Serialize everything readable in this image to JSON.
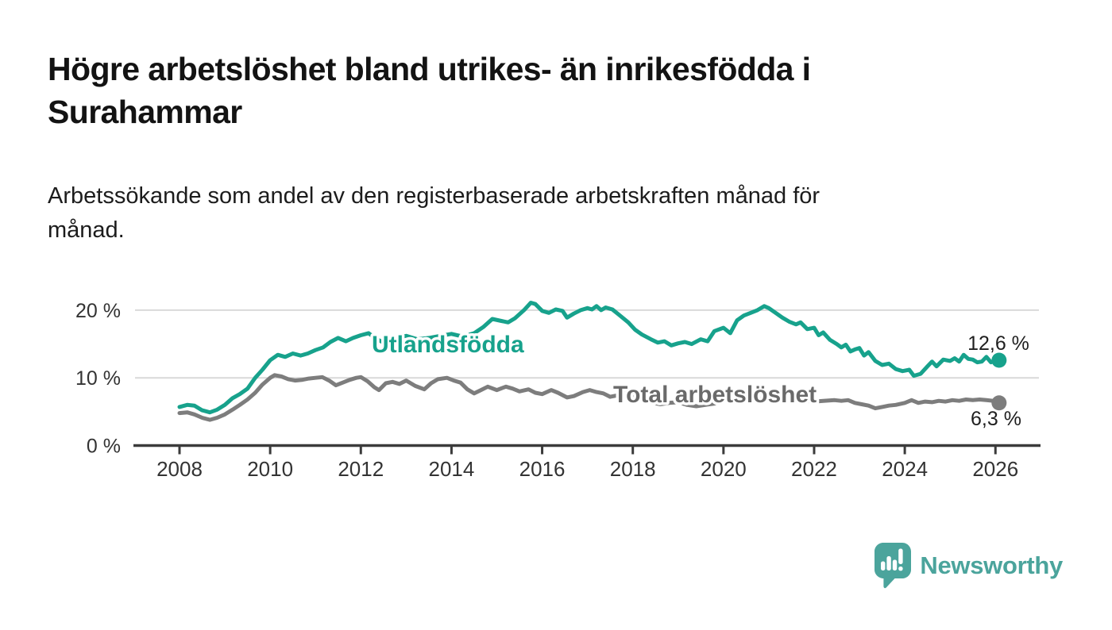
{
  "header": {
    "title_line1": "Högre arbetslöshet bland utrikes- än inrikesfödda i",
    "title_line2": "Surahammar",
    "subtitle_line1": "Arbetssökande som andel av den registerbaserade arbetskraften månad för",
    "subtitle_line2": "månad."
  },
  "footer": {
    "brand": "Newsworthy",
    "brand_color": "#4ba49c"
  },
  "chart_data": {
    "type": "line",
    "title": "Högre arbetslöshet bland utrikes- än inrikesfödda i Surahammar",
    "subtitle": "Arbetssökande som andel av den registerbaserade arbetskraften månad för månad.",
    "grid": "horizontal-only",
    "legend_position": "inline-labels-on-lines",
    "x_axis": {
      "range_years": [
        2007.0,
        2027.0
      ],
      "tick_years": [
        2008,
        2010,
        2012,
        2014,
        2016,
        2018,
        2020,
        2022,
        2024,
        2026
      ],
      "tick_labels": [
        "2008",
        "2010",
        "2012",
        "2014",
        "2016",
        "2018",
        "2020",
        "2022",
        "2024",
        "2026"
      ]
    },
    "y_axis": {
      "range_percent": [
        0,
        23.5
      ],
      "tick_values": [
        0,
        10,
        20
      ],
      "tick_labels": [
        "0 %",
        "10 %",
        "20 %"
      ]
    },
    "style": {
      "grid_color": "#d9d9d9",
      "axis_color": "#3b3b3b",
      "tick_text_color": "#333333",
      "value_label_color": "#1f1f1f"
    },
    "series": [
      {
        "name": "Utlandsfödda",
        "color": "#17a28c",
        "label_color": "#17a28c",
        "end_value": 12.6,
        "end_label": "12,6 %",
        "points": [
          [
            2008.0,
            5.7
          ],
          [
            2008.17,
            6.0
          ],
          [
            2008.33,
            5.9
          ],
          [
            2008.5,
            5.2
          ],
          [
            2008.67,
            4.9
          ],
          [
            2008.83,
            5.3
          ],
          [
            2009.0,
            6.0
          ],
          [
            2009.17,
            7.0
          ],
          [
            2009.33,
            7.6
          ],
          [
            2009.5,
            8.4
          ],
          [
            2009.67,
            10.0
          ],
          [
            2009.83,
            11.2
          ],
          [
            2010.0,
            12.6
          ],
          [
            2010.17,
            13.4
          ],
          [
            2010.33,
            13.1
          ],
          [
            2010.5,
            13.6
          ],
          [
            2010.67,
            13.3
          ],
          [
            2010.83,
            13.6
          ],
          [
            2011.0,
            14.1
          ],
          [
            2011.17,
            14.5
          ],
          [
            2011.33,
            15.3
          ],
          [
            2011.5,
            15.9
          ],
          [
            2011.67,
            15.4
          ],
          [
            2011.83,
            15.9
          ],
          [
            2012.0,
            16.3
          ],
          [
            2012.17,
            16.6
          ],
          [
            2012.33,
            15.8
          ],
          [
            2012.5,
            15.2
          ],
          [
            2012.67,
            15.6
          ],
          [
            2012.83,
            16.0
          ],
          [
            2013.0,
            16.2
          ],
          [
            2013.25,
            15.7
          ],
          [
            2013.5,
            15.9
          ],
          [
            2013.75,
            16.2
          ],
          [
            2014.0,
            16.5
          ],
          [
            2014.25,
            16.1
          ],
          [
            2014.5,
            16.6
          ],
          [
            2014.7,
            17.5
          ],
          [
            2014.9,
            18.7
          ],
          [
            2015.1,
            18.4
          ],
          [
            2015.25,
            18.2
          ],
          [
            2015.4,
            18.8
          ],
          [
            2015.6,
            20.0
          ],
          [
            2015.75,
            21.1
          ],
          [
            2015.85,
            20.9
          ],
          [
            2016.0,
            19.9
          ],
          [
            2016.15,
            19.6
          ],
          [
            2016.3,
            20.1
          ],
          [
            2016.45,
            19.9
          ],
          [
            2016.55,
            18.9
          ],
          [
            2016.7,
            19.5
          ],
          [
            2016.85,
            20.0
          ],
          [
            2017.0,
            20.3
          ],
          [
            2017.1,
            20.1
          ],
          [
            2017.2,
            20.6
          ],
          [
            2017.3,
            20.0
          ],
          [
            2017.4,
            20.4
          ],
          [
            2017.55,
            20.1
          ],
          [
            2017.7,
            19.3
          ],
          [
            2017.9,
            18.2
          ],
          [
            2018.05,
            17.1
          ],
          [
            2018.2,
            16.4
          ],
          [
            2018.4,
            15.7
          ],
          [
            2018.55,
            15.2
          ],
          [
            2018.7,
            15.4
          ],
          [
            2018.85,
            14.8
          ],
          [
            2019.0,
            15.1
          ],
          [
            2019.15,
            15.3
          ],
          [
            2019.3,
            15.0
          ],
          [
            2019.5,
            15.7
          ],
          [
            2019.65,
            15.4
          ],
          [
            2019.8,
            16.9
          ],
          [
            2020.0,
            17.4
          ],
          [
            2020.15,
            16.6
          ],
          [
            2020.3,
            18.5
          ],
          [
            2020.45,
            19.2
          ],
          [
            2020.6,
            19.6
          ],
          [
            2020.75,
            20.0
          ],
          [
            2020.9,
            20.6
          ],
          [
            2021.0,
            20.3
          ],
          [
            2021.15,
            19.6
          ],
          [
            2021.3,
            18.9
          ],
          [
            2021.45,
            18.3
          ],
          [
            2021.6,
            17.9
          ],
          [
            2021.7,
            18.2
          ],
          [
            2021.85,
            17.2
          ],
          [
            2022.0,
            17.4
          ],
          [
            2022.1,
            16.3
          ],
          [
            2022.2,
            16.7
          ],
          [
            2022.35,
            15.6
          ],
          [
            2022.5,
            15.0
          ],
          [
            2022.6,
            14.5
          ],
          [
            2022.7,
            14.9
          ],
          [
            2022.8,
            13.9
          ],
          [
            2022.9,
            14.2
          ],
          [
            2023.0,
            14.4
          ],
          [
            2023.1,
            13.3
          ],
          [
            2023.2,
            13.8
          ],
          [
            2023.35,
            12.5
          ],
          [
            2023.5,
            11.9
          ],
          [
            2023.65,
            12.1
          ],
          [
            2023.8,
            11.3
          ],
          [
            2023.95,
            11.0
          ],
          [
            2024.1,
            11.2
          ],
          [
            2024.2,
            10.3
          ],
          [
            2024.35,
            10.6
          ],
          [
            2024.5,
            11.7
          ],
          [
            2024.6,
            12.4
          ],
          [
            2024.7,
            11.7
          ],
          [
            2024.85,
            12.7
          ],
          [
            2025.0,
            12.5
          ],
          [
            2025.1,
            12.9
          ],
          [
            2025.2,
            12.4
          ],
          [
            2025.3,
            13.4
          ],
          [
            2025.4,
            12.8
          ],
          [
            2025.5,
            12.7
          ],
          [
            2025.6,
            12.3
          ],
          [
            2025.7,
            12.4
          ],
          [
            2025.8,
            13.1
          ],
          [
            2025.9,
            12.3
          ],
          [
            2026.0,
            12.5
          ],
          [
            2026.08,
            12.6
          ]
        ]
      },
      {
        "name": "Total arbetslöshet",
        "color": "#7d7d7d",
        "label_color": "#6a6a6a",
        "end_value": 6.3,
        "end_label": "6,3 %",
        "points": [
          [
            2008.0,
            4.8
          ],
          [
            2008.17,
            4.9
          ],
          [
            2008.33,
            4.6
          ],
          [
            2008.5,
            4.1
          ],
          [
            2008.67,
            3.8
          ],
          [
            2008.83,
            4.1
          ],
          [
            2009.0,
            4.6
          ],
          [
            2009.17,
            5.3
          ],
          [
            2009.33,
            6.0
          ],
          [
            2009.5,
            6.8
          ],
          [
            2009.67,
            7.8
          ],
          [
            2009.83,
            9.0
          ],
          [
            2010.0,
            10.0
          ],
          [
            2010.1,
            10.4
          ],
          [
            2010.25,
            10.2
          ],
          [
            2010.4,
            9.8
          ],
          [
            2010.55,
            9.6
          ],
          [
            2010.7,
            9.7
          ],
          [
            2010.85,
            9.9
          ],
          [
            2011.0,
            10.0
          ],
          [
            2011.15,
            10.1
          ],
          [
            2011.3,
            9.6
          ],
          [
            2011.45,
            8.9
          ],
          [
            2011.6,
            9.3
          ],
          [
            2011.75,
            9.7
          ],
          [
            2011.9,
            10.0
          ],
          [
            2012.0,
            10.1
          ],
          [
            2012.15,
            9.5
          ],
          [
            2012.3,
            8.6
          ],
          [
            2012.4,
            8.2
          ],
          [
            2012.55,
            9.2
          ],
          [
            2012.7,
            9.4
          ],
          [
            2012.85,
            9.1
          ],
          [
            2013.0,
            9.6
          ],
          [
            2013.2,
            8.8
          ],
          [
            2013.4,
            8.3
          ],
          [
            2013.55,
            9.2
          ],
          [
            2013.7,
            9.8
          ],
          [
            2013.9,
            10.0
          ],
          [
            2014.05,
            9.6
          ],
          [
            2014.2,
            9.3
          ],
          [
            2014.35,
            8.3
          ],
          [
            2014.5,
            7.7
          ],
          [
            2014.65,
            8.2
          ],
          [
            2014.8,
            8.7
          ],
          [
            2015.0,
            8.2
          ],
          [
            2015.2,
            8.7
          ],
          [
            2015.35,
            8.4
          ],
          [
            2015.5,
            8.0
          ],
          [
            2015.7,
            8.3
          ],
          [
            2015.85,
            7.8
          ],
          [
            2016.0,
            7.6
          ],
          [
            2016.2,
            8.2
          ],
          [
            2016.35,
            7.8
          ],
          [
            2016.55,
            7.1
          ],
          [
            2016.7,
            7.3
          ],
          [
            2016.9,
            7.9
          ],
          [
            2017.05,
            8.2
          ],
          [
            2017.2,
            7.9
          ],
          [
            2017.35,
            7.7
          ],
          [
            2017.5,
            7.2
          ],
          [
            2017.65,
            7.4
          ],
          [
            2017.8,
            7.9
          ],
          [
            2018.0,
            7.5
          ],
          [
            2018.2,
            7.0
          ],
          [
            2018.4,
            6.4
          ],
          [
            2018.6,
            6.1
          ],
          [
            2018.8,
            6.3
          ],
          [
            2019.0,
            6.4
          ],
          [
            2019.2,
            6.0
          ],
          [
            2019.4,
            5.8
          ],
          [
            2019.6,
            6.0
          ],
          [
            2019.8,
            6.2
          ],
          [
            2020.0,
            6.6
          ],
          [
            2020.2,
            7.0
          ],
          [
            2020.4,
            7.3
          ],
          [
            2020.6,
            7.1
          ],
          [
            2020.8,
            6.9
          ],
          [
            2021.0,
            7.1
          ],
          [
            2021.2,
            6.9
          ],
          [
            2021.4,
            6.7
          ],
          [
            2021.6,
            6.6
          ],
          [
            2021.8,
            6.6
          ],
          [
            2022.0,
            6.5
          ],
          [
            2022.2,
            6.6
          ],
          [
            2022.45,
            6.7
          ],
          [
            2022.6,
            6.6
          ],
          [
            2022.75,
            6.7
          ],
          [
            2022.9,
            6.3
          ],
          [
            2023.05,
            6.1
          ],
          [
            2023.2,
            5.9
          ],
          [
            2023.35,
            5.5
          ],
          [
            2023.5,
            5.7
          ],
          [
            2023.65,
            5.9
          ],
          [
            2023.8,
            6.0
          ],
          [
            2024.0,
            6.3
          ],
          [
            2024.15,
            6.7
          ],
          [
            2024.3,
            6.3
          ],
          [
            2024.45,
            6.5
          ],
          [
            2024.6,
            6.4
          ],
          [
            2024.75,
            6.6
          ],
          [
            2024.9,
            6.5
          ],
          [
            2025.05,
            6.7
          ],
          [
            2025.2,
            6.6
          ],
          [
            2025.35,
            6.8
          ],
          [
            2025.5,
            6.7
          ],
          [
            2025.65,
            6.8
          ],
          [
            2025.8,
            6.7
          ],
          [
            2025.95,
            6.6
          ],
          [
            2026.08,
            6.3
          ]
        ]
      }
    ]
  }
}
